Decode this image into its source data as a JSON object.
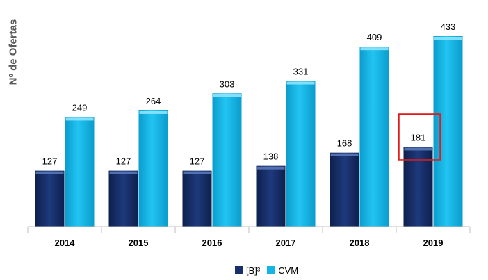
{
  "chart_data": {
    "type": "bar",
    "ylabel": "Nº de Ofertas",
    "categories": [
      "2014",
      "2015",
      "2016",
      "2017",
      "2018",
      "2019"
    ],
    "series": [
      {
        "name": "[B]³",
        "values": [
          127,
          127,
          127,
          138,
          168,
          181
        ],
        "color": "#17306b"
      },
      {
        "name": "CVM",
        "values": [
          249,
          264,
          303,
          331,
          409,
          433
        ],
        "color": "#12b5e6"
      }
    ],
    "highlight": {
      "series": 0,
      "category": "2019",
      "color": "#e31b1b"
    },
    "grid": false,
    "legend": "bottom"
  }
}
